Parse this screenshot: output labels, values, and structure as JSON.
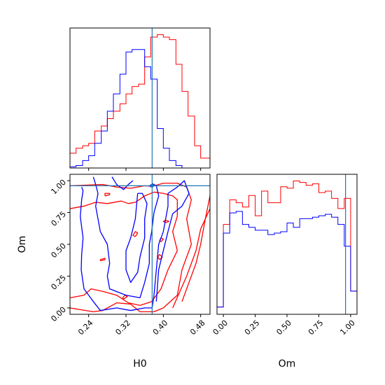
{
  "chart_data": {
    "type": "corner",
    "truth": {
      "H0": 0.376,
      "Om": 0.96
    },
    "colors": {
      "red": "#ff0000",
      "blue": "#0000ff",
      "truth": "#1f77b4",
      "axes": "#000000"
    },
    "panels": [
      {
        "id": "hist-H0",
        "type": "step-histogram",
        "xlabel": "",
        "xlim": [
          0.2,
          0.5
        ],
        "bin_edges": [
          0.2,
          0.213,
          0.227,
          0.24,
          0.253,
          0.267,
          0.28,
          0.293,
          0.307,
          0.32,
          0.333,
          0.347,
          0.36,
          0.373,
          0.387,
          0.4,
          0.413,
          0.427,
          0.44,
          0.453,
          0.467,
          0.48,
          0.493,
          0.5
        ],
        "series": [
          {
            "color": "red",
            "counts": [
              6,
              8,
              9,
              10,
              15,
              17,
              20,
              23,
              26,
              30,
              33,
              34,
              45,
              53,
              54,
              53,
              52,
              42,
              31,
              21,
              9,
              4,
              4
            ]
          },
          {
            "color": "blue",
            "counts": [
              0.5,
              1,
              3,
              5,
              10,
              15,
              23,
              30,
              38,
              47,
              48,
              48,
              41,
              36,
              16,
              8,
              3,
              1,
              0,
              0,
              0,
              0,
              0
            ]
          }
        ],
        "xticks": [],
        "yticks": []
      },
      {
        "id": "contour-H0-Om",
        "type": "contour",
        "xlabel": "H0",
        "ylabel": "Om",
        "xlim": [
          0.2,
          0.5
        ],
        "ylim": [
          -0.05,
          1.05
        ],
        "xticks": [
          "0.24",
          "0.32",
          "0.40",
          "0.48"
        ],
        "xtick_values": [
          0.24,
          0.32,
          0.4,
          0.48
        ],
        "yticks": [
          "0.00",
          "0.25",
          "0.50",
          "0.75",
          "1.00"
        ],
        "ytick_values": [
          0.0,
          0.25,
          0.5,
          0.75,
          1.0
        ],
        "contours": [
          {
            "color": "red",
            "points": [
              [
                0.2,
                0.96
              ],
              [
                0.27,
                0.97
              ],
              [
                0.3,
                0.95
              ],
              [
                0.33,
                0.94
              ],
              [
                0.36,
                0.96
              ],
              [
                0.376,
                0.955
              ],
              [
                0.4,
                0.98
              ],
              [
                0.43,
                0.98
              ],
              [
                0.45,
                0.95
              ],
              [
                0.46,
                0.85
              ],
              [
                0.45,
                0.7
              ],
              [
                0.46,
                0.5
              ],
              [
                0.44,
                0.3
              ],
              [
                0.43,
                0.1
              ],
              [
                0.4,
                0.0
              ],
              [
                0.38,
                -0.03
              ],
              [
                0.35,
                -0.03
              ],
              [
                0.33,
                0.03
              ],
              [
                0.3,
                0.04
              ],
              [
                0.27,
                -0.02
              ],
              [
                0.25,
                -0.03
              ],
              [
                0.2,
                0.0
              ]
            ]
          },
          {
            "color": "red",
            "points": [
              [
                0.2,
                0.78
              ],
              [
                0.23,
                0.8
              ],
              [
                0.255,
                0.83
              ],
              [
                0.28,
                0.82
              ],
              [
                0.31,
                0.84
              ],
              [
                0.325,
                0.82
              ],
              [
                0.34,
                0.83
              ],
              [
                0.36,
                0.88
              ],
              [
                0.38,
                0.91
              ],
              [
                0.4,
                0.9
              ],
              [
                0.42,
                0.88
              ],
              [
                0.43,
                0.85
              ],
              [
                0.43,
                0.72
              ],
              [
                0.42,
                0.6
              ],
              [
                0.43,
                0.45
              ],
              [
                0.41,
                0.3
              ],
              [
                0.395,
                0.15
              ],
              [
                0.375,
                0.05
              ],
              [
                0.35,
                0.02
              ],
              [
                0.325,
                0.04
              ],
              [
                0.3,
                0.1
              ],
              [
                0.27,
                0.13
              ],
              [
                0.245,
                0.15
              ],
              [
                0.23,
                0.1
              ],
              [
                0.2,
                0.08
              ]
            ]
          },
          {
            "color": "red",
            "points": [
              [
                0.44,
                0.05
              ],
              [
                0.47,
                0.35
              ],
              [
                0.48,
                0.5
              ],
              [
                0.49,
                0.7
              ],
              [
                0.5,
                0.88
              ]
            ]
          },
          {
            "color": "red",
            "points": [
              [
                0.42,
                0.0
              ],
              [
                0.45,
                0.25
              ],
              [
                0.47,
                0.45
              ],
              [
                0.48,
                0.62
              ],
              [
                0.5,
                0.78
              ]
            ]
          },
          {
            "color": "red",
            "points": [
              [
                0.275,
                0.88
              ],
              [
                0.285,
                0.89
              ],
              [
                0.285,
                0.9
              ],
              [
                0.275,
                0.9
              ],
              [
                0.275,
                0.88
              ]
            ]
          },
          {
            "color": "red",
            "points": [
              [
                0.265,
                0.37
              ],
              [
                0.275,
                0.38
              ],
              [
                0.275,
                0.39
              ],
              [
                0.265,
                0.38
              ],
              [
                0.265,
                0.37
              ]
            ]
          },
          {
            "color": "red",
            "points": [
              [
                0.315,
                0.07
              ],
              [
                0.323,
                0.09
              ],
              [
                0.318,
                0.1
              ],
              [
                0.313,
                0.08
              ],
              [
                0.315,
                0.07
              ]
            ]
          },
          {
            "color": "red",
            "points": [
              [
                0.34,
                0.56
              ],
              [
                0.345,
                0.59
              ],
              [
                0.34,
                0.6
              ],
              [
                0.335,
                0.57
              ],
              [
                0.34,
                0.56
              ]
            ]
          },
          {
            "color": "red",
            "points": [
              [
                0.395,
                0.52
              ],
              [
                0.4,
                0.54
              ],
              [
                0.395,
                0.55
              ],
              [
                0.392,
                0.53
              ],
              [
                0.395,
                0.52
              ]
            ]
          },
          {
            "color": "red",
            "points": [
              [
                0.392,
                0.38
              ],
              [
                0.398,
                0.4
              ],
              [
                0.392,
                0.42
              ],
              [
                0.388,
                0.4
              ],
              [
                0.392,
                0.38
              ]
            ]
          },
          {
            "color": "red",
            "points": [
              [
                0.405,
                0.67
              ],
              [
                0.412,
                0.68
              ],
              [
                0.405,
                0.69
              ],
              [
                0.4,
                0.68
              ],
              [
                0.405,
                0.67
              ]
            ]
          },
          {
            "color": "blue",
            "points": [
              [
                0.225,
                0.95
              ],
              [
                0.228,
                0.92
              ],
              [
                0.225,
                0.85
              ],
              [
                0.222,
                0.72
              ],
              [
                0.228,
                0.55
              ],
              [
                0.225,
                0.42
              ],
              [
                0.224,
                0.3
              ],
              [
                0.23,
                0.15
              ],
              [
                0.25,
                0.05
              ],
              [
                0.265,
                -0.02
              ],
              [
                0.3,
                0.0
              ],
              [
                0.33,
                -0.02
              ],
              [
                0.36,
                0.0
              ],
              [
                0.376,
                0.0
              ],
              [
                0.38,
                0.1
              ],
              [
                0.385,
                0.3
              ],
              [
                0.39,
                0.5
              ],
              [
                0.4,
                0.6
              ],
              [
                0.405,
                0.7
              ],
              [
                0.41,
                0.8
              ],
              [
                0.41,
                0.9
              ],
              [
                0.43,
                0.95
              ],
              [
                0.445,
                1.0
              ],
              [
                0.455,
                0.9
              ],
              [
                0.44,
                0.8
              ],
              [
                0.42,
                0.74
              ],
              [
                0.41,
                0.6
              ],
              [
                0.4,
                0.45
              ],
              [
                0.39,
                0.3
              ],
              [
                0.385,
                0.05
              ]
            ]
          },
          {
            "color": "blue",
            "points": [
              [
                0.25,
                1.03
              ],
              [
                0.255,
                0.97
              ],
              [
                0.26,
                0.9
              ],
              [
                0.255,
                0.8
              ],
              [
                0.26,
                0.7
              ],
              [
                0.265,
                0.6
              ],
              [
                0.28,
                0.5
              ],
              [
                0.285,
                0.35
              ],
              [
                0.28,
                0.25
              ],
              [
                0.285,
                0.15
              ],
              [
                0.32,
                0.1
              ],
              [
                0.35,
                0.08
              ],
              [
                0.36,
                0.2
              ],
              [
                0.37,
                0.35
              ],
              [
                0.37,
                0.5
              ],
              [
                0.375,
                0.6
              ],
              [
                0.38,
                0.75
              ],
              [
                0.39,
                0.88
              ],
              [
                0.385,
                0.96
              ],
              [
                0.38,
                0.97
              ]
            ]
          },
          {
            "color": "blue",
            "points": [
              [
                0.29,
                1.03
              ],
              [
                0.3,
                0.97
              ],
              [
                0.315,
                0.93
              ],
              [
                0.325,
                0.97
              ],
              [
                0.335,
                1.0
              ]
            ]
          },
          {
            "color": "blue",
            "points": [
              [
                0.345,
                0.9
              ],
              [
                0.34,
                0.7
              ],
              [
                0.33,
                0.55
              ],
              [
                0.32,
                0.45
              ],
              [
                0.32,
                0.3
              ],
              [
                0.33,
                0.2
              ],
              [
                0.345,
                0.28
              ],
              [
                0.35,
                0.4
              ],
              [
                0.36,
                0.55
              ],
              [
                0.36,
                0.7
              ],
              [
                0.365,
                0.82
              ],
              [
                0.355,
                0.9
              ],
              [
                0.345,
                0.9
              ]
            ]
          },
          {
            "color": "blue",
            "points": [
              [
                0.373,
                0.95
              ],
              [
                0.38,
                0.96
              ],
              [
                0.378,
                0.975
              ],
              [
                0.372,
                0.965
              ],
              [
                0.373,
                0.95
              ]
            ]
          }
        ]
      },
      {
        "id": "hist-Om",
        "type": "step-histogram",
        "xlabel": "Om",
        "xlim": [
          -0.05,
          1.05
        ],
        "bin_edges": [
          -0.05,
          0.0,
          0.05,
          0.1,
          0.15,
          0.2,
          0.25,
          0.3,
          0.35,
          0.4,
          0.45,
          0.5,
          0.55,
          0.6,
          0.65,
          0.7,
          0.75,
          0.8,
          0.85,
          0.9,
          0.95,
          1.0,
          1.05
        ],
        "xticks": [
          "0.00",
          "0.25",
          "0.50",
          "0.75",
          "1.00"
        ],
        "xtick_values": [
          0.0,
          0.25,
          0.5,
          0.75,
          1.0
        ],
        "series": [
          {
            "color": "red",
            "counts": [
              0.05,
              0.62,
              0.79,
              0.77,
              0.74,
              0.82,
              0.68,
              0.85,
              0.77,
              0.77,
              0.88,
              0.87,
              0.92,
              0.91,
              0.89,
              0.9,
              0.84,
              0.85,
              0.8,
              0.73,
              0.8,
              0.16
            ]
          },
          {
            "color": "blue",
            "counts": [
              0.05,
              0.56,
              0.7,
              0.71,
              0.62,
              0.6,
              0.58,
              0.58,
              0.55,
              0.56,
              0.57,
              0.63,
              0.6,
              0.66,
              0.66,
              0.67,
              0.68,
              0.69,
              0.67,
              0.62,
              0.47,
              0.16
            ]
          }
        ]
      }
    ]
  }
}
